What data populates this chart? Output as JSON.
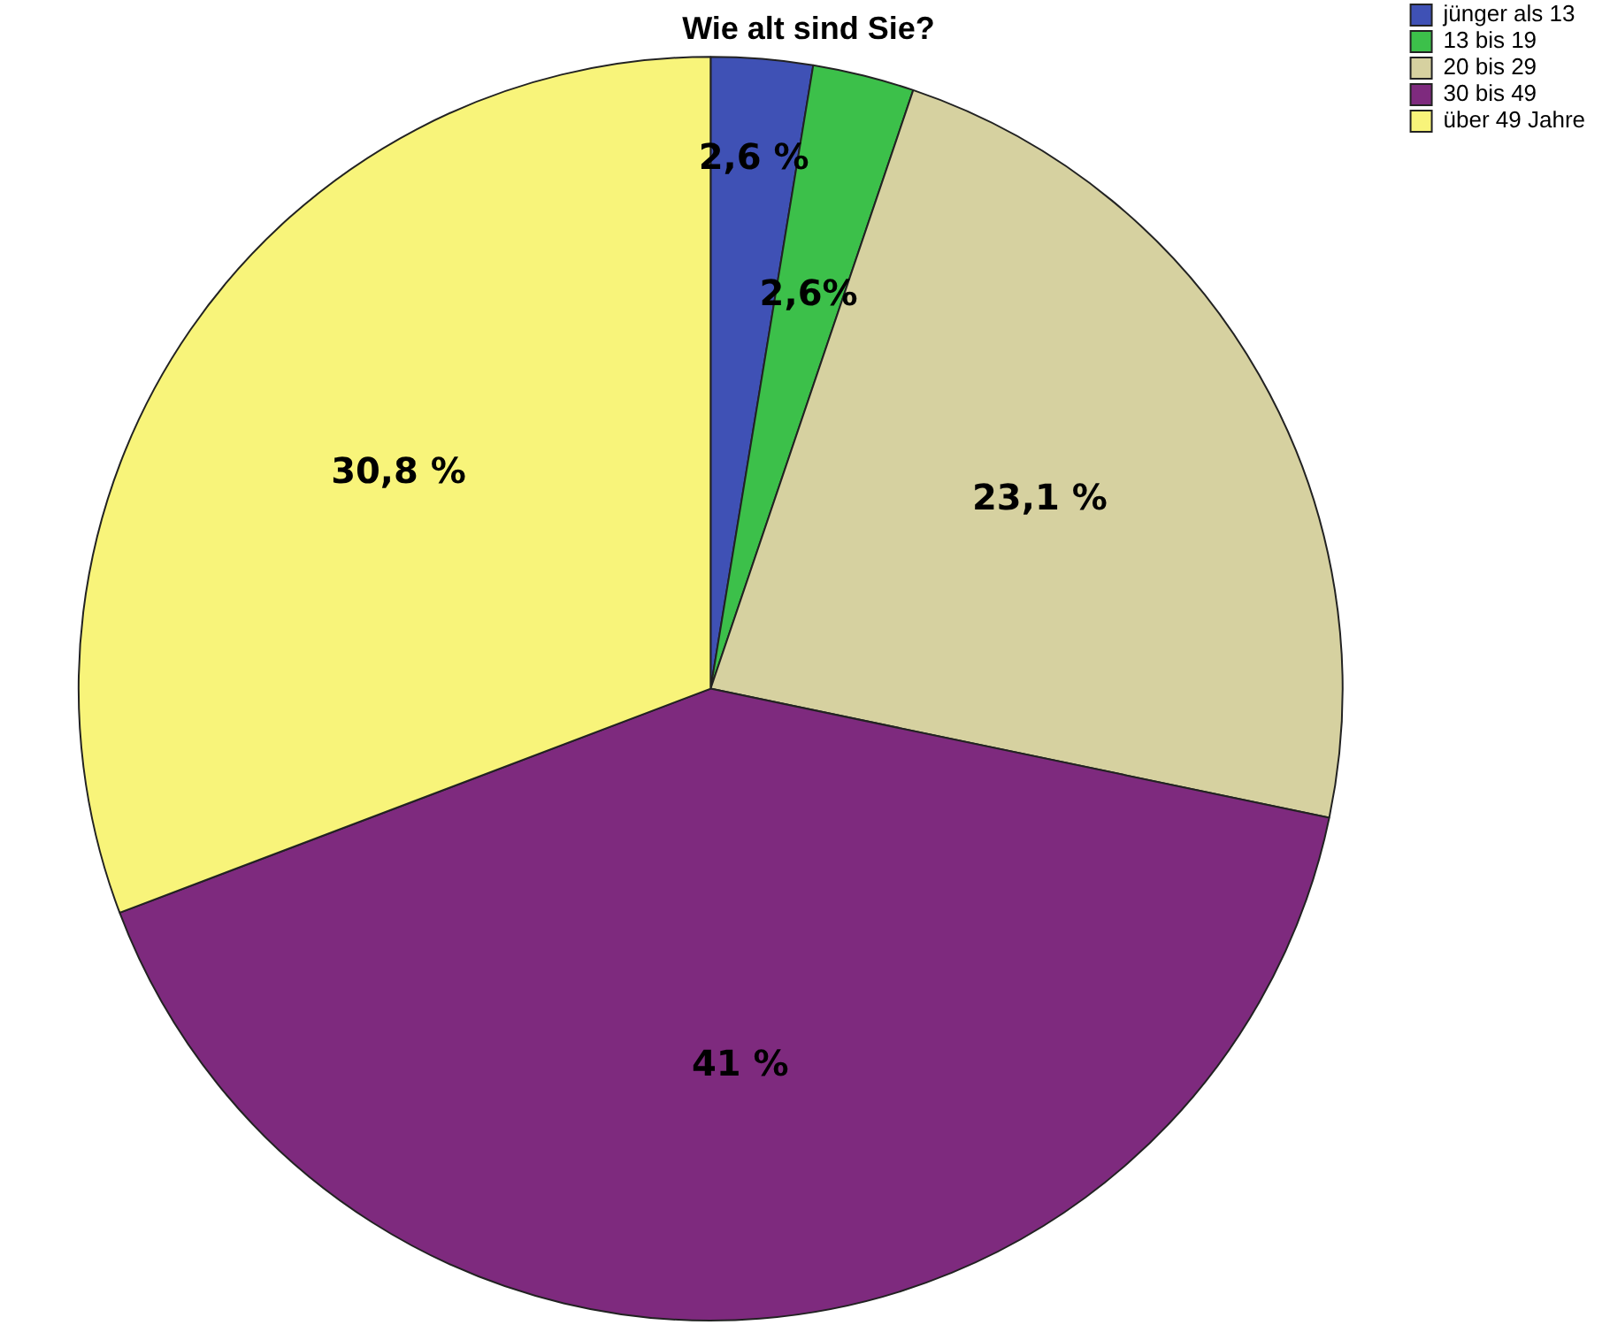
{
  "chart_data": {
    "type": "pie",
    "title": "Wie alt sind Sie?",
    "categories": [
      "jünger als 13",
      "13 bis 19",
      "20 bis 29",
      "30 bis 49",
      "über 49 Jahre"
    ],
    "values": [
      2.6,
      2.6,
      23.1,
      41,
      30.8
    ],
    "value_labels": [
      "2,6 %",
      "2,6%",
      "23,1 %",
      "41 %",
      "30,8 %"
    ],
    "colors": [
      "#3f51b5",
      "#3cc04a",
      "#d6d1a0",
      "#7e2a7e",
      "#f8f47a"
    ],
    "legend": "top right"
  }
}
